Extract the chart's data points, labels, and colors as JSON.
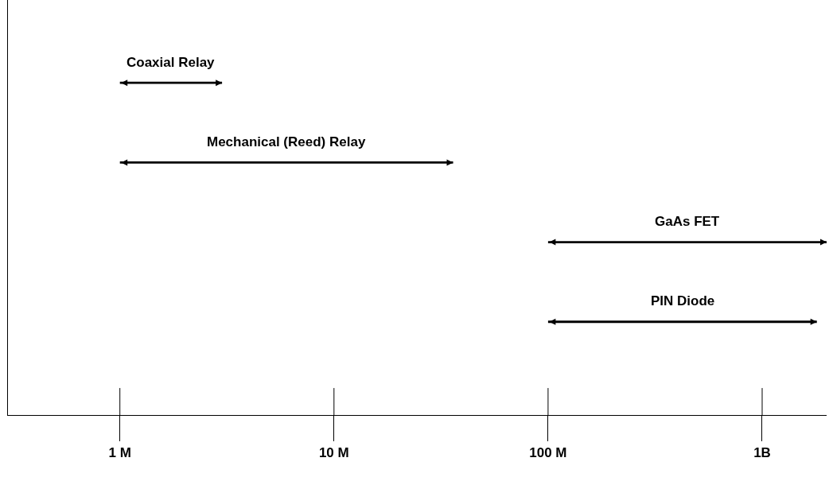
{
  "chart_data": {
    "type": "bar",
    "orientation": "horizontal",
    "log": "x",
    "categories": [
      "Coaxial Relay",
      "Mechanical (Reed) Relay",
      "GaAs FET",
      "PIN Diode"
    ],
    "base": [
      1000000,
      1000000,
      100000000,
      100000000
    ],
    "values": [
      2000000,
      35000000,
      1900000000,
      1700000000
    ],
    "color": "#000000",
    "xlim": [
      300000,
      2000000000
    ],
    "xticks": [
      {
        "value": 1000000,
        "label": "1 M"
      },
      {
        "value": 10000000,
        "label": "10 M"
      },
      {
        "value": 100000000,
        "label": "100 M"
      },
      {
        "value": 1000000000,
        "label": "1B"
      }
    ],
    "grid": false,
    "tick_labels": "x"
  }
}
